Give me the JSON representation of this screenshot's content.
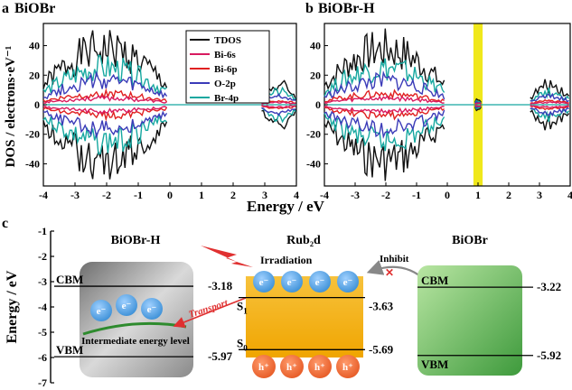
{
  "chart_data": [
    {
      "type": "line",
      "panel_label": "a",
      "title": "BiOBr",
      "ylabel": "DOS / electrons·eV⁻¹",
      "xlabel": "Energy / eV",
      "xlim": [
        -4,
        4
      ],
      "ylim": [
        -55,
        55
      ],
      "xticks": [
        -4,
        -3,
        -2,
        -1,
        0,
        1,
        2,
        3,
        4
      ],
      "yticks": [
        -40,
        -20,
        0,
        20,
        40
      ],
      "legend_position": "top-right",
      "series": [
        {
          "name": "TDOS",
          "color": "#111111",
          "peak": 52,
          "region": "valence+conduction"
        },
        {
          "name": "Bi-6s",
          "color": "#d81b60",
          "peak": 6
        },
        {
          "name": "Bi-6p",
          "color": "#e02020",
          "peak": 10
        },
        {
          "name": "O-2p",
          "color": "#3b3bb8",
          "peak": 22
        },
        {
          "name": "Br-4p",
          "color": "#16a8a0",
          "peak": 34
        }
      ],
      "bands": {
        "valence": [
          -4,
          -0.1
        ],
        "conduction": [
          2.9,
          4
        ]
      }
    },
    {
      "type": "line",
      "panel_label": "b",
      "title": "BiOBr-H",
      "xlabel": "Energy / eV",
      "xlim": [
        -4,
        4
      ],
      "ylim": [
        -55,
        55
      ],
      "xticks": [
        -4,
        -3,
        -2,
        -1,
        0,
        1,
        2,
        3,
        4
      ],
      "yticks": [
        -40,
        -20,
        0,
        20,
        40
      ],
      "highlight": {
        "x": [
          0.85,
          1.15
        ],
        "color": "#f0e81c"
      },
      "bands": {
        "valence": [
          -4,
          -0.1
        ],
        "midgap": [
          0.9,
          1.1
        ],
        "conduction": [
          2.7,
          4
        ]
      }
    },
    {
      "type": "diagram",
      "panel_label": "c",
      "ylabel": "Energy / eV",
      "ylim": [
        -7,
        -1
      ],
      "yticks": [
        -1,
        -2,
        -3,
        -4,
        -5,
        -6,
        -7
      ],
      "columns": [
        {
          "name": "BiOBr-H",
          "cbm_label": "CBM",
          "vbm_label": "VBM",
          "cbm": -3.18,
          "vbm": -5.97,
          "cbm_text": "-3.18",
          "vbm_text": "-5.97",
          "electron": "e⁻",
          "note": "Intermediate energy level",
          "arrow": "Transport"
        },
        {
          "name": "Rub₂d",
          "s1_label": "S",
          "s1_sub": "1",
          "s0_label": "S",
          "s0_sub": "0",
          "s1": -3.63,
          "s0": -5.69,
          "s1_text": "-3.63",
          "s0_text": "-5.69",
          "electron": "e⁻",
          "hole": "h⁺",
          "excitation": "Irradiation"
        },
        {
          "name": "BiOBr",
          "cbm_label": "CBM",
          "vbm_label": "VBM",
          "cbm": -3.22,
          "vbm": -5.92,
          "cbm_text": "-3.22",
          "vbm_text": "-5.92",
          "arrow": "Inhibit"
        }
      ]
    }
  ]
}
